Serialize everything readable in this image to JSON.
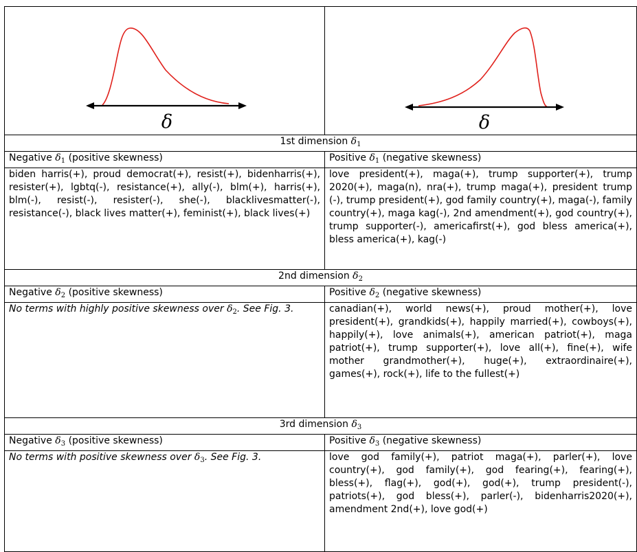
{
  "figure": {
    "left_panel": {
      "axis_symbol": "δ",
      "curve_color": "#e0201b"
    },
    "right_panel": {
      "axis_symbol": "δ",
      "curve_color": "#e0201b"
    }
  },
  "sections": [
    {
      "dimension_label": "1st dimension",
      "symbol": "δ",
      "subscript": "1",
      "negative_header": {
        "prefix": "Negative",
        "symbol": "δ",
        "subscript": "1",
        "suffix": "(positive skewness)"
      },
      "positive_header": {
        "prefix": "Positive",
        "symbol": "δ",
        "subscript": "1",
        "suffix": "(negative skewness)"
      },
      "negative_terms": "biden harris(+), proud democrat(+), resist(+), bidenharris(+), resister(+), lgbtq(-), resistance(+), ally(-), blm(+), harris(+), blm(-), resist(-), resister(-), she(-), blacklivesmatter(-), resistance(-), black lives matter(+), feminist(+), black lives(+)",
      "positive_terms": "love president(+), maga(+), trump supporter(+), trump 2020(+), maga(n), nra(+), trump maga(+), president trump (-), trump president(+), god family country(+), maga(-), family country(+), maga kag(-), 2nd amendment(+), god country(+), trump supporter(-), americafirst(+), god bless america(+), bless america(+), kag(-)"
    },
    {
      "dimension_label": "2nd dimension",
      "symbol": "δ",
      "subscript": "2",
      "negative_header": {
        "prefix": "Negative",
        "symbol": "δ",
        "subscript": "2",
        "suffix": "(positive skewness)"
      },
      "positive_header": {
        "prefix": "Positive",
        "symbol": "δ",
        "subscript": "2",
        "suffix": "(negative skewness)"
      },
      "negative_note": {
        "before": "No terms with highly positive skewness over",
        "symbol": "δ",
        "subscript": "2",
        "after": ". See Fig. 3."
      },
      "positive_terms": "canadian(+), world news(+), proud mother(+), love president(+), grandkids(+), happily married(+), cowboys(+), happily(+), love animals(+), american patriot(+), maga patriot(+), trump supporter(+), love all(+), fine(+), wife mother grandmother(+), huge(+), extraordinaire(+), games(+), rock(+), life to the fullest(+)"
    },
    {
      "dimension_label": "3rd dimension",
      "symbol": "δ",
      "subscript": "3",
      "negative_header": {
        "prefix": "Negative",
        "symbol": "δ",
        "subscript": "3",
        "suffix": "(positive skewness)"
      },
      "positive_header": {
        "prefix": "Positive",
        "symbol": "δ",
        "subscript": "3",
        "suffix": "(negative skewness)"
      },
      "negative_note": {
        "before": "No terms with positive skewness over",
        "symbol": "δ",
        "subscript": "3",
        "after": ". See Fig. 3."
      },
      "positive_terms": "love god family(+), patriot maga(+), parler(+), love country(+), god family(+), god fearing(+), fearing(+), bless(+), flag(+), god(+), god(+), trump president(-), patriots(+), god bless(+), parler(-), bidenharris2020(+), amendment 2nd(+), love god(+)"
    }
  ]
}
